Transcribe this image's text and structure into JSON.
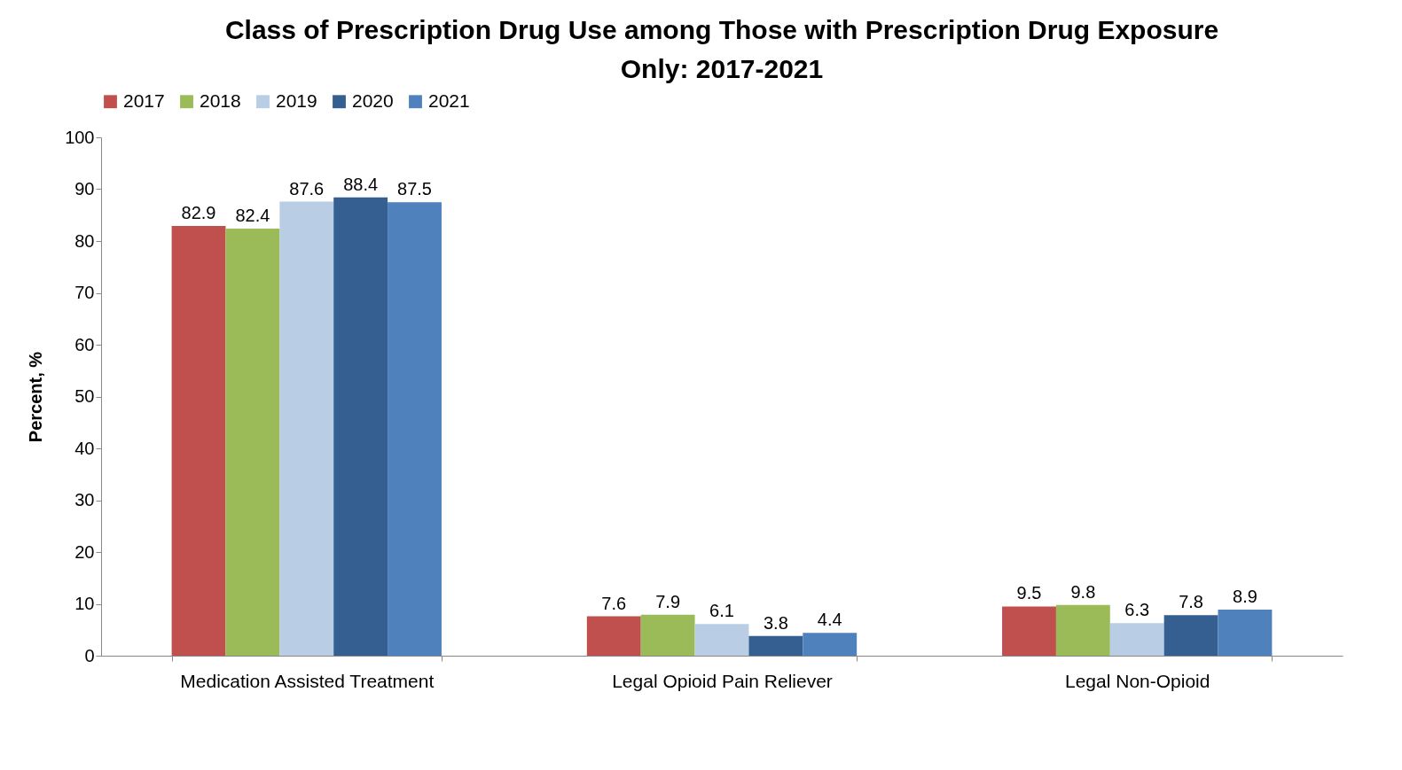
{
  "chart_data": {
    "type": "bar",
    "title": [
      "Class of Prescription Drug Use among Those with Prescription Drug Exposure",
      "Only: 2017-2021"
    ],
    "ylabel": "Percent, %",
    "categories": [
      "Medication Assisted Treatment",
      "Legal Opioid Pain Reliever",
      "Legal Non-Opioid"
    ],
    "series": [
      {
        "name": "2017",
        "color": "#c0504d",
        "values": [
          82.9,
          7.6,
          9.5
        ]
      },
      {
        "name": "2018",
        "color": "#9bbb59",
        "values": [
          82.4,
          7.9,
          9.8
        ]
      },
      {
        "name": "2019",
        "color": "#b9cde5",
        "values": [
          87.6,
          6.1,
          6.3
        ]
      },
      {
        "name": "2020",
        "color": "#355f91",
        "values": [
          88.4,
          3.8,
          7.8
        ]
      },
      {
        "name": "2021",
        "color": "#4f81bd",
        "values": [
          87.5,
          4.4,
          8.9
        ]
      }
    ],
    "ylim": [
      0,
      100
    ],
    "yticks": [
      0,
      10,
      20,
      30,
      40,
      50,
      60,
      70,
      80,
      90,
      100
    ],
    "grid": false,
    "legend": "top",
    "data_labels": true
  }
}
